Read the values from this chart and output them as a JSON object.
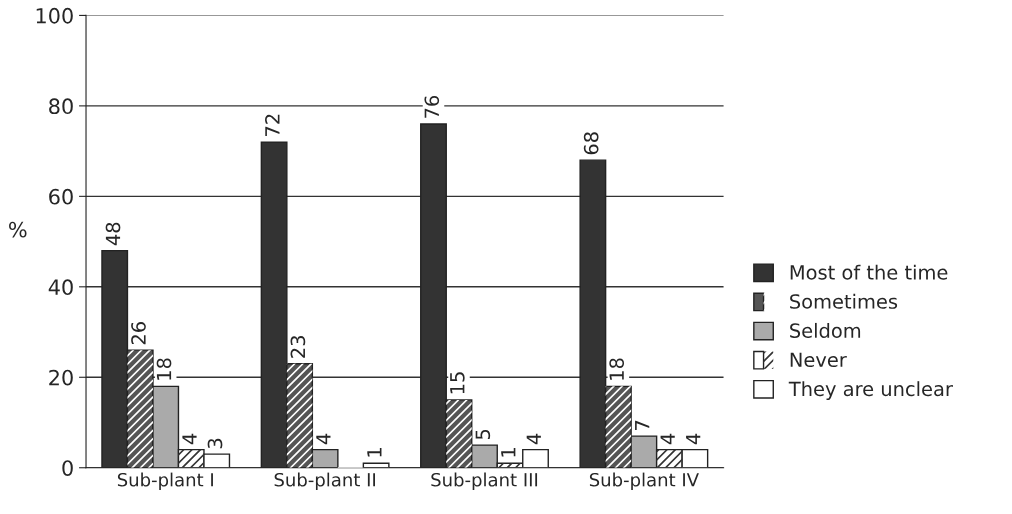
{
  "chart_data": {
    "type": "bar",
    "categories": [
      "Sub-plant I",
      "Sub-plant II",
      "Sub-plant III",
      "Sub-plant IV"
    ],
    "ylabel": "%",
    "ylim": [
      0,
      100
    ],
    "yticks": [
      0,
      20,
      40,
      60,
      80,
      100
    ],
    "grid": "y",
    "legend": "right",
    "series": [
      {
        "name": "Most of the time",
        "color": "#333333",
        "values": [
          48,
          72,
          76,
          68
        ],
        "value_labels": [
          "48",
          "72",
          "76",
          "68"
        ]
      },
      {
        "name": "Sometimes",
        "color": "#555555",
        "values": [
          26,
          23,
          15,
          18
        ],
        "value_labels": [
          "26",
          "23",
          "15",
          "18"
        ]
      },
      {
        "name": "Seldom",
        "color": "#aaaaaa",
        "values": [
          18,
          4,
          5,
          7
        ],
        "value_labels": [
          "18",
          "4",
          "5",
          "7"
        ]
      },
      {
        "name": "Never",
        "color": "#ffffff",
        "values": [
          4,
          0,
          1,
          4
        ],
        "value_labels": [
          "4",
          null,
          "1",
          "4"
        ]
      },
      {
        "name": "They are unclear",
        "color": "#ffffff",
        "values": [
          3,
          1,
          4,
          4
        ],
        "value_labels": [
          "3",
          "1",
          "4",
          "4"
        ]
      }
    ]
  }
}
